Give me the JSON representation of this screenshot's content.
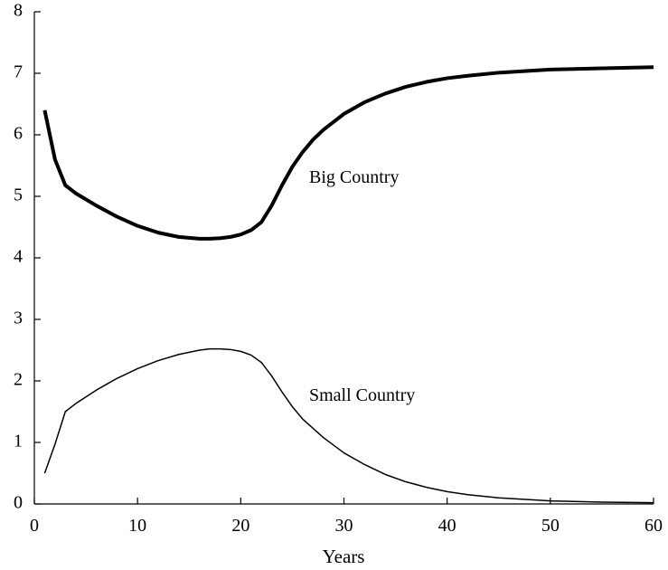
{
  "chart_data": {
    "type": "line",
    "title": "",
    "xlabel": "Years",
    "ylabel": "",
    "xlim": [
      0,
      60
    ],
    "ylim": [
      0,
      8
    ],
    "xticks": [
      0,
      10,
      20,
      30,
      40,
      50,
      60
    ],
    "yticks": [
      0,
      1,
      2,
      3,
      4,
      5,
      6,
      7,
      8
    ],
    "grid": false,
    "legend": "none",
    "series": [
      {
        "name": "Big Country",
        "color": "#000000",
        "line_weight": "thick",
        "x": [
          1,
          2,
          3,
          4,
          6,
          8,
          10,
          12,
          14,
          16,
          17,
          18,
          19,
          20,
          21,
          22,
          23,
          24,
          25,
          26,
          27,
          28,
          30,
          32,
          34,
          36,
          38,
          40,
          42,
          45,
          48,
          50,
          55,
          60
        ],
        "y": [
          6.4,
          5.6,
          5.18,
          5.05,
          4.85,
          4.67,
          4.52,
          4.41,
          4.34,
          4.31,
          4.31,
          4.32,
          4.34,
          4.38,
          4.45,
          4.58,
          4.85,
          5.18,
          5.48,
          5.72,
          5.92,
          6.08,
          6.34,
          6.53,
          6.67,
          6.78,
          6.86,
          6.92,
          6.96,
          7.01,
          7.04,
          7.06,
          7.08,
          7.1
        ]
      },
      {
        "name": "Small Country",
        "color": "#000000",
        "line_weight": "thin",
        "x": [
          1,
          2,
          3,
          4,
          6,
          8,
          10,
          12,
          14,
          16,
          17,
          18,
          19,
          20,
          21,
          22,
          23,
          24,
          25,
          26,
          28,
          30,
          32,
          34,
          36,
          38,
          40,
          42,
          45,
          48,
          50,
          55,
          60
        ],
        "y": [
          0.5,
          0.97,
          1.5,
          1.63,
          1.85,
          2.04,
          2.2,
          2.33,
          2.43,
          2.5,
          2.52,
          2.52,
          2.51,
          2.48,
          2.42,
          2.3,
          2.08,
          1.82,
          1.58,
          1.38,
          1.08,
          0.83,
          0.64,
          0.48,
          0.36,
          0.27,
          0.2,
          0.15,
          0.1,
          0.07,
          0.05,
          0.03,
          0.02
        ]
      }
    ],
    "annotations": [
      "Big Country",
      "Small Country"
    ]
  }
}
